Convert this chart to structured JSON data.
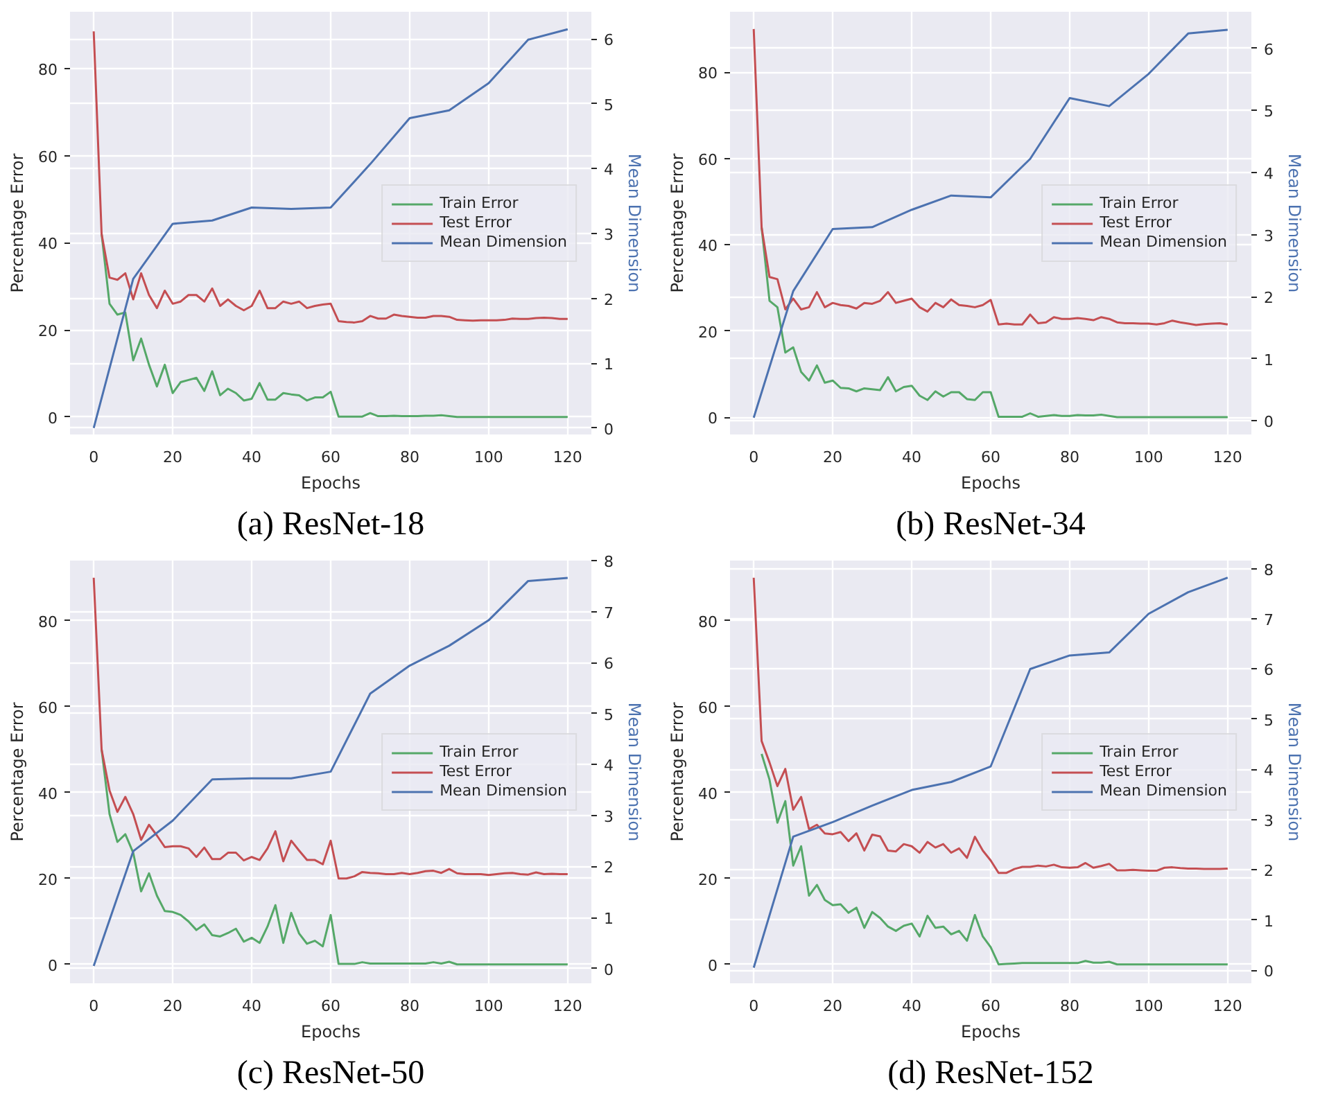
{
  "chart_data": [
    {
      "type": "line",
      "title": "(a) ResNet-18",
      "xlabel": "Epochs",
      "ylabel": "Percentage Error",
      "y2label": "Mean Dimension",
      "xlim": [
        -6,
        126
      ],
      "ylim": [
        -4,
        93
      ],
      "y2lim": [
        -0.1,
        6.42
      ],
      "xticks": [
        0,
        20,
        40,
        60,
        80,
        100,
        120
      ],
      "yticks": [
        0,
        20,
        40,
        60,
        80
      ],
      "y2ticks": [
        0,
        1,
        2,
        3,
        4,
        5,
        6
      ],
      "grid": true,
      "legend": "right",
      "marker": "none",
      "line_style": "solid",
      "series": [
        {
          "name": "Train Error",
          "color": "#55a868",
          "x": [
            2,
            4,
            6,
            8,
            10,
            12,
            14,
            16,
            18,
            20,
            22,
            24,
            26,
            28,
            30,
            32,
            34,
            36,
            38,
            40,
            42,
            44,
            46,
            48,
            50,
            52,
            54,
            56,
            58,
            60,
            62,
            64,
            66,
            68,
            70,
            72,
            74,
            76,
            78,
            80,
            82,
            84,
            86,
            88,
            90,
            92,
            94,
            96,
            98,
            100,
            102,
            104,
            106,
            108,
            110,
            112,
            114,
            116,
            118,
            120
          ],
          "values": [
            42,
            26,
            23.5,
            24,
            13,
            18,
            12,
            7,
            12,
            5.5,
            8,
            8.5,
            9,
            6,
            10.5,
            5,
            6.5,
            5.5,
            3.8,
            4.2,
            7.8,
            4,
            4,
            5.5,
            5.2,
            5,
            3.8,
            4.5,
            4.5,
            5.8,
            0.1,
            0.1,
            0.1,
            0.1,
            0.9,
            0.2,
            0.2,
            0.3,
            0.2,
            0.2,
            0.2,
            0.3,
            0.3,
            0.4,
            0.2,
            0,
            0,
            0,
            0,
            0,
            0,
            0,
            0,
            0,
            0,
            0,
            0,
            0,
            0,
            0
          ]
        },
        {
          "name": "Test Error",
          "color": "#c44e52",
          "x": [
            0,
            2,
            4,
            6,
            8,
            10,
            12,
            14,
            16,
            18,
            20,
            22,
            24,
            26,
            28,
            30,
            32,
            34,
            36,
            38,
            40,
            42,
            44,
            46,
            48,
            50,
            52,
            54,
            56,
            58,
            60,
            62,
            64,
            66,
            68,
            70,
            72,
            74,
            76,
            78,
            80,
            82,
            84,
            86,
            88,
            90,
            92,
            94,
            96,
            98,
            100,
            102,
            104,
            106,
            108,
            110,
            112,
            114,
            116,
            118,
            120
          ],
          "values": [
            88.5,
            42,
            32,
            31.5,
            33,
            27,
            33,
            28,
            25,
            29,
            26,
            26.5,
            28,
            28,
            26.5,
            29.5,
            25.5,
            27,
            25.5,
            24.5,
            25.5,
            29,
            25,
            25,
            26.5,
            26,
            26.5,
            25,
            25.5,
            25.8,
            26,
            22,
            21.8,
            21.7,
            22,
            23.2,
            22.6,
            22.6,
            23.5,
            23.2,
            23,
            22.8,
            22.8,
            23.2,
            23.2,
            23,
            22.3,
            22.2,
            22.1,
            22.2,
            22.2,
            22.2,
            22.3,
            22.6,
            22.5,
            22.5,
            22.7,
            22.8,
            22.7,
            22.5,
            22.5
          ]
        },
        {
          "name": "Mean Dimension",
          "color": "#4c72b0",
          "axis": "y2",
          "x": [
            0,
            10,
            20,
            30,
            40,
            50,
            60,
            70,
            80,
            90,
            100,
            110,
            120
          ],
          "values": [
            0,
            2.3,
            3.15,
            3.2,
            3.4,
            3.38,
            3.4,
            4.07,
            4.78,
            4.9,
            5.32,
            5.99,
            6.15
          ]
        }
      ]
    },
    {
      "type": "line",
      "title": "(b) ResNet-34",
      "xlabel": "Epochs",
      "ylabel": "Percentage Error",
      "y2label": "Mean Dimension",
      "xlim": [
        -6,
        126
      ],
      "ylim": [
        -4,
        94
      ],
      "y2lim": [
        -0.22,
        6.59
      ],
      "xticks": [
        0,
        20,
        40,
        60,
        80,
        100,
        120
      ],
      "yticks": [
        0,
        20,
        40,
        60,
        80
      ],
      "y2ticks": [
        0,
        1,
        2,
        3,
        4,
        5,
        6
      ],
      "grid": true,
      "legend": "right",
      "marker": "none",
      "line_style": "solid",
      "series": [
        {
          "name": "Train Error",
          "color": "#55a868",
          "x": [
            2,
            4,
            6,
            8,
            10,
            12,
            14,
            16,
            18,
            20,
            22,
            24,
            26,
            28,
            30,
            32,
            34,
            36,
            38,
            40,
            42,
            44,
            46,
            48,
            50,
            52,
            54,
            56,
            58,
            60,
            62,
            64,
            66,
            68,
            70,
            72,
            74,
            76,
            78,
            80,
            82,
            84,
            86,
            88,
            90,
            92,
            94,
            96,
            98,
            100,
            102,
            104,
            106,
            108,
            110,
            112,
            114,
            116,
            118,
            120
          ],
          "values": [
            44,
            27,
            25.5,
            15,
            16.2,
            10.5,
            8.5,
            12,
            8,
            8.5,
            6.8,
            6.7,
            6,
            6.7,
            6.5,
            6.3,
            9.3,
            6,
            7,
            7.3,
            5,
            4,
            6,
            4.8,
            5.8,
            5.8,
            4.2,
            4,
            5.8,
            5.8,
            0.1,
            0.1,
            0.1,
            0.1,
            0.9,
            0.1,
            0.3,
            0.5,
            0.3,
            0.3,
            0.5,
            0.4,
            0.4,
            0.6,
            0.3,
            0,
            0,
            0,
            0,
            0,
            0,
            0,
            0,
            0,
            0,
            0,
            0,
            0,
            0,
            0
          ]
        },
        {
          "name": "Test Error",
          "color": "#c44e52",
          "x": [
            0,
            2,
            4,
            6,
            8,
            10,
            12,
            14,
            16,
            18,
            20,
            22,
            24,
            26,
            28,
            30,
            32,
            34,
            36,
            38,
            40,
            42,
            44,
            46,
            48,
            50,
            52,
            54,
            56,
            58,
            60,
            62,
            64,
            66,
            68,
            70,
            72,
            74,
            76,
            78,
            80,
            82,
            84,
            86,
            88,
            90,
            92,
            94,
            96,
            98,
            100,
            102,
            104,
            106,
            108,
            110,
            112,
            114,
            116,
            118,
            120
          ],
          "values": [
            90,
            44,
            32.5,
            32,
            25,
            27.5,
            25,
            25.5,
            29,
            25.5,
            26.5,
            26,
            25.8,
            25.2,
            26.5,
            26.3,
            27,
            29,
            26.5,
            27,
            27.5,
            25.5,
            24.5,
            26.5,
            25.5,
            27.3,
            26,
            25.8,
            25.5,
            26,
            27.2,
            21.5,
            21.7,
            21.5,
            21.5,
            23.8,
            21.8,
            22,
            23.2,
            22.8,
            22.8,
            23,
            22.8,
            22.5,
            23.2,
            22.8,
            22,
            21.8,
            21.8,
            21.7,
            21.7,
            21.5,
            21.8,
            22.4,
            22,
            21.7,
            21.4,
            21.6,
            21.7,
            21.8,
            21.5
          ]
        },
        {
          "name": "Mean Dimension",
          "color": "#4c72b0",
          "axis": "y2",
          "x": [
            0,
            10,
            20,
            30,
            40,
            50,
            60,
            70,
            80,
            90,
            100,
            110,
            120
          ],
          "values": [
            0.05,
            2.09,
            3.09,
            3.12,
            3.4,
            3.63,
            3.6,
            4.22,
            5.2,
            5.07,
            5.59,
            6.24,
            6.3
          ]
        }
      ]
    },
    {
      "type": "line",
      "title": "(c) ResNet-50",
      "xlabel": "Epochs",
      "ylabel": "Percentage Error",
      "y2label": "Mean Dimension",
      "xlim": [
        -6,
        126
      ],
      "ylim": [
        -4.4,
        94
      ],
      "y2lim": [
        -0.29,
        8
      ],
      "xticks": [
        0,
        20,
        40,
        60,
        80,
        100,
        120
      ],
      "yticks": [
        0,
        20,
        40,
        60,
        80
      ],
      "y2ticks": [
        0,
        1,
        2,
        3,
        4,
        5,
        6,
        7,
        8
      ],
      "grid": true,
      "legend": "right",
      "marker": "none",
      "line_style": "solid",
      "series": [
        {
          "name": "Train Error",
          "color": "#55a868",
          "x": [
            2,
            4,
            6,
            8,
            10,
            12,
            14,
            16,
            18,
            20,
            22,
            24,
            26,
            28,
            30,
            32,
            34,
            36,
            38,
            40,
            42,
            44,
            46,
            48,
            50,
            52,
            54,
            56,
            58,
            60,
            62,
            64,
            66,
            68,
            70,
            72,
            74,
            76,
            78,
            80,
            82,
            84,
            86,
            88,
            90,
            92,
            94,
            96,
            98,
            100,
            102,
            104,
            106,
            108,
            110,
            112,
            114,
            116,
            118,
            120
          ],
          "values": [
            50,
            35,
            28.5,
            30.3,
            26,
            17,
            21.2,
            16,
            12.4,
            12.2,
            11.5,
            10,
            8,
            9.3,
            6.8,
            6.5,
            7.3,
            8.3,
            5.3,
            6.2,
            5,
            8.8,
            13.8,
            5,
            12,
            7.2,
            4.8,
            5.5,
            4.2,
            11.5,
            0.1,
            0.1,
            0.1,
            0.5,
            0.2,
            0.2,
            0.2,
            0.2,
            0.2,
            0.2,
            0.2,
            0.2,
            0.5,
            0.2,
            0.6,
            0,
            0,
            0,
            0,
            0,
            0,
            0,
            0,
            0,
            0,
            0,
            0,
            0,
            0,
            0
          ]
        },
        {
          "name": "Test Error",
          "color": "#c44e52",
          "x": [
            0,
            2,
            4,
            6,
            8,
            10,
            12,
            14,
            16,
            18,
            20,
            22,
            24,
            26,
            28,
            30,
            32,
            34,
            36,
            38,
            40,
            42,
            44,
            46,
            48,
            50,
            52,
            54,
            56,
            58,
            60,
            62,
            64,
            66,
            68,
            70,
            72,
            74,
            76,
            78,
            80,
            82,
            84,
            86,
            88,
            90,
            92,
            94,
            96,
            98,
            100,
            102,
            104,
            106,
            108,
            110,
            112,
            114,
            116,
            118,
            120
          ],
          "values": [
            90,
            50,
            40.5,
            35.5,
            39,
            35,
            29,
            32.5,
            30,
            27.3,
            27.5,
            27.5,
            27,
            25,
            27.2,
            24.5,
            24.5,
            26,
            26,
            24.2,
            25,
            24.3,
            27,
            31,
            24,
            28.8,
            26.5,
            24.3,
            24.3,
            23.3,
            28.8,
            20,
            20,
            20.5,
            21.5,
            21.3,
            21.2,
            21,
            21,
            21.3,
            21,
            21.3,
            21.7,
            21.8,
            21.3,
            22.2,
            21.2,
            21,
            21,
            21,
            20.8,
            21,
            21.2,
            21.3,
            21,
            20.9,
            21.4,
            21,
            21.1,
            21,
            21
          ]
        },
        {
          "name": "Mean Dimension",
          "color": "#4c72b0",
          "axis": "y2",
          "x": [
            0,
            10,
            20,
            30,
            40,
            50,
            60,
            70,
            80,
            90,
            100,
            110,
            120
          ],
          "values": [
            0.05,
            2.3,
            2.9,
            3.71,
            3.73,
            3.73,
            3.86,
            5.39,
            5.94,
            6.33,
            6.83,
            7.6,
            7.66
          ]
        }
      ]
    },
    {
      "type": "line",
      "title": "(d) ResNet-152",
      "xlabel": "Epochs",
      "ylabel": "Percentage Error",
      "y2label": "Mean Dimension",
      "xlim": [
        -6,
        126
      ],
      "ylim": [
        -4.4,
        94
      ],
      "y2lim": [
        -0.26,
        8.16
      ],
      "xticks": [
        0,
        20,
        40,
        60,
        80,
        100,
        120
      ],
      "yticks": [
        0,
        20,
        40,
        60,
        80
      ],
      "y2ticks": [
        0,
        1,
        2,
        3,
        4,
        5,
        6,
        7,
        8
      ],
      "grid": true,
      "legend": "right",
      "marker": "none",
      "line_style": "solid",
      "series": [
        {
          "name": "Train Error",
          "color": "#55a868",
          "x": [
            2,
            4,
            6,
            8,
            10,
            12,
            14,
            16,
            18,
            20,
            22,
            24,
            26,
            28,
            30,
            32,
            34,
            36,
            38,
            40,
            42,
            44,
            46,
            48,
            50,
            52,
            54,
            56,
            58,
            60,
            62,
            64,
            66,
            68,
            70,
            72,
            74,
            76,
            78,
            80,
            82,
            84,
            86,
            88,
            90,
            92,
            94,
            96,
            98,
            100,
            102,
            104,
            106,
            108,
            110,
            112,
            114,
            116,
            118,
            120
          ],
          "values": [
            49,
            43,
            33,
            38,
            23,
            27.5,
            16,
            18.5,
            15,
            13.8,
            14,
            12,
            13.2,
            8.5,
            12.2,
            10.8,
            8.8,
            7.8,
            9,
            9.5,
            6.5,
            11.3,
            8.5,
            8.8,
            7,
            7.8,
            5.5,
            11.5,
            6.5,
            4,
            0,
            0.1,
            0.2,
            0.3,
            0.3,
            0.3,
            0.3,
            0.3,
            0.3,
            0.3,
            0.3,
            0.8,
            0.4,
            0.4,
            0.6,
            0,
            0,
            0,
            0,
            0,
            0,
            0,
            0,
            0,
            0,
            0,
            0,
            0,
            0,
            0
          ]
        },
        {
          "name": "Test Error",
          "color": "#c44e52",
          "x": [
            0,
            2,
            4,
            6,
            8,
            10,
            12,
            14,
            16,
            18,
            20,
            22,
            24,
            26,
            28,
            30,
            32,
            34,
            36,
            38,
            40,
            42,
            44,
            46,
            48,
            50,
            52,
            54,
            56,
            58,
            60,
            62,
            64,
            66,
            68,
            70,
            72,
            74,
            76,
            78,
            80,
            82,
            84,
            86,
            88,
            90,
            92,
            94,
            96,
            98,
            100,
            102,
            104,
            106,
            108,
            110,
            112,
            114,
            116,
            118,
            120
          ],
          "values": [
            90,
            52,
            47,
            41.5,
            45.5,
            36,
            39,
            31.5,
            32.5,
            30.5,
            30.3,
            30.8,
            28.7,
            30.5,
            26.5,
            30.2,
            29.8,
            26.5,
            26.3,
            28,
            27.5,
            26,
            28.5,
            27.2,
            28,
            26,
            27,
            24.8,
            29.7,
            26.5,
            24.2,
            21.3,
            21.3,
            22.2,
            22.7,
            22.7,
            23,
            22.8,
            23.2,
            22.6,
            22.5,
            22.6,
            23.6,
            22.5,
            22.9,
            23.4,
            21.9,
            21.9,
            22,
            21.9,
            21.8,
            21.8,
            22.5,
            22.6,
            22.4,
            22.3,
            22.3,
            22.2,
            22.2,
            22.2,
            22.3
          ]
        },
        {
          "name": "Mean Dimension",
          "color": "#4c72b0",
          "axis": "y2",
          "x": [
            0,
            10,
            20,
            30,
            40,
            50,
            60,
            70,
            80,
            90,
            100,
            110,
            120
          ],
          "values": [
            0.05,
            2.66,
            2.95,
            3.28,
            3.59,
            3.75,
            4.06,
            6.0,
            6.27,
            6.33,
            7.1,
            7.53,
            7.82
          ]
        }
      ]
    }
  ]
}
